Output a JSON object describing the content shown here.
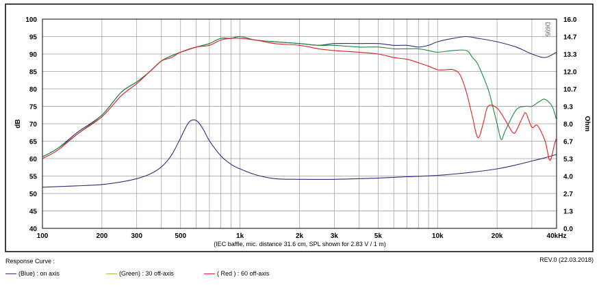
{
  "chart_data": {
    "type": "line",
    "x_scale": "log",
    "xlim": [
      100,
      40000
    ],
    "ylim_left": [
      40,
      100
    ],
    "ylim_right": [
      0,
      16
    ],
    "ylabel_left": "dB",
    "ylabel_right": "Ohm",
    "x_tick_labels": [
      {
        "value": 100,
        "label": "100"
      },
      {
        "value": 200,
        "label": "200"
      },
      {
        "value": 300,
        "label": "300"
      },
      {
        "value": 500,
        "label": "500"
      },
      {
        "value": 1000,
        "label": "1k"
      },
      {
        "value": 2000,
        "label": "2k"
      },
      {
        "value": 3000,
        "label": "3k"
      },
      {
        "value": 5000,
        "label": "5k"
      },
      {
        "value": 10000,
        "label": "10k"
      },
      {
        "value": 20000,
        "label": "20k"
      },
      {
        "value": 40000,
        "label": "40kHz"
      }
    ],
    "y_left_ticks": [
      "100",
      "95",
      "90",
      "85",
      "80",
      "75",
      "70",
      "65",
      "60",
      "55",
      "50",
      "45",
      "40"
    ],
    "y_right_ticks": [
      "16.0",
      "14.7",
      "13.3",
      "12.0",
      "10.7",
      "9.3",
      "8.0",
      "6.7",
      "5.3",
      "4.0",
      "2.7",
      "1.3",
      "0.0"
    ],
    "note": "(IEC baffle, mic. distance 31.6 cm, SPL shown for 2.83 V / 1 m)",
    "corner_code": "D695",
    "grid": true,
    "series": [
      {
        "name": "(Blue) : on axis",
        "color": "#2b2f7a",
        "axis": "left",
        "x": [
          100,
          120,
          150,
          200,
          250,
          300,
          350,
          400,
          450,
          500,
          600,
          700,
          800,
          900,
          1000,
          1200,
          1500,
          2000,
          2500,
          3000,
          4000,
          5000,
          6000,
          7000,
          8000,
          9000,
          10000,
          12000,
          14000,
          16000,
          20000,
          25000,
          30000,
          35000,
          40000
        ],
        "values": [
          60.5,
          63,
          67.5,
          72.5,
          79,
          82,
          85,
          88,
          89.5,
          90.5,
          92,
          93,
          94.5,
          94.5,
          95,
          94,
          93.5,
          93,
          92.5,
          93,
          93,
          93,
          92.5,
          92.5,
          92,
          92.5,
          93.5,
          94.5,
          95,
          94.5,
          93.5,
          92,
          90,
          89,
          90.5
        ]
      },
      {
        "name": "(Green) : 30 off-axis",
        "color": "#1a8a3a",
        "axis": "left",
        "x": [
          100,
          120,
          150,
          200,
          250,
          300,
          350,
          400,
          450,
          500,
          600,
          700,
          800,
          900,
          1000,
          1200,
          1500,
          2000,
          2500,
          3000,
          4000,
          5000,
          6000,
          7000,
          8000,
          9000,
          10000,
          12000,
          14000,
          15000,
          16000,
          18000,
          19000,
          20000,
          21000,
          22000,
          25000,
          28000,
          30000,
          33000,
          35000,
          38000,
          40000
        ],
        "values": [
          60.5,
          63,
          67,
          72.5,
          79,
          82,
          85,
          88,
          89.5,
          90.5,
          92,
          93,
          94.5,
          94.5,
          95,
          94,
          93.5,
          93,
          92.5,
          92.5,
          92,
          92,
          91.5,
          91.5,
          91.5,
          91,
          90.5,
          91,
          91,
          89,
          87,
          80,
          75,
          70,
          65.5,
          68,
          74,
          75,
          75,
          76.5,
          77,
          75,
          71
        ]
      },
      {
        "name": "( Red ) : 60 off-axis",
        "color": "#dd1f26",
        "axis": "left",
        "x": [
          100,
          120,
          150,
          200,
          250,
          300,
          350,
          400,
          450,
          500,
          600,
          700,
          800,
          900,
          1000,
          1200,
          1500,
          2000,
          2500,
          3000,
          4000,
          5000,
          6000,
          7000,
          8000,
          9000,
          10000,
          11000,
          12000,
          13000,
          14000,
          15000,
          16000,
          17000,
          18000,
          20000,
          22000,
          24000,
          25000,
          27000,
          28000,
          30000,
          32000,
          35000,
          37000,
          39000,
          40000
        ],
        "values": [
          60,
          62.5,
          67,
          72,
          78,
          81.5,
          85,
          88,
          89,
          90.5,
          92,
          92.5,
          94,
          94.5,
          94.5,
          94,
          93,
          92.5,
          91.5,
          91,
          90.5,
          90,
          89,
          88.5,
          87.5,
          86.5,
          85.5,
          85.5,
          85.5,
          84,
          79,
          72,
          66,
          70,
          75,
          74.5,
          71,
          67.5,
          68,
          72,
          73,
          69,
          69.5,
          65,
          59.5,
          64,
          66
        ]
      },
      {
        "name": "Impedance",
        "color": "#2b2f7a",
        "axis": "right",
        "x": [
          100,
          150,
          200,
          250,
          300,
          350,
          400,
          450,
          500,
          550,
          600,
          650,
          700,
          800,
          900,
          1000,
          1200,
          1500,
          2000,
          3000,
          5000,
          7000,
          10000,
          15000,
          20000,
          25000,
          30000,
          35000,
          40000
        ],
        "values": [
          3.15,
          3.25,
          3.35,
          3.55,
          3.8,
          4.15,
          4.7,
          5.6,
          6.9,
          8.1,
          8.25,
          7.6,
          6.7,
          5.55,
          4.9,
          4.55,
          4.1,
          3.8,
          3.75,
          3.75,
          3.85,
          3.95,
          4.05,
          4.3,
          4.55,
          4.85,
          5.15,
          5.4,
          5.65
        ]
      }
    ]
  },
  "legend": {
    "title": "Response Curve :",
    "items": [
      {
        "label": "(Blue)  : on axis",
        "color": "#2b2f7a"
      },
      {
        "label": "(Green) : 30 off-axis",
        "color": "#9bbf3a"
      },
      {
        "label": "( Red ) : 60 off-axis",
        "color": "#dd1f26"
      }
    ]
  },
  "revision": "REV.0 (22.03.2018)"
}
